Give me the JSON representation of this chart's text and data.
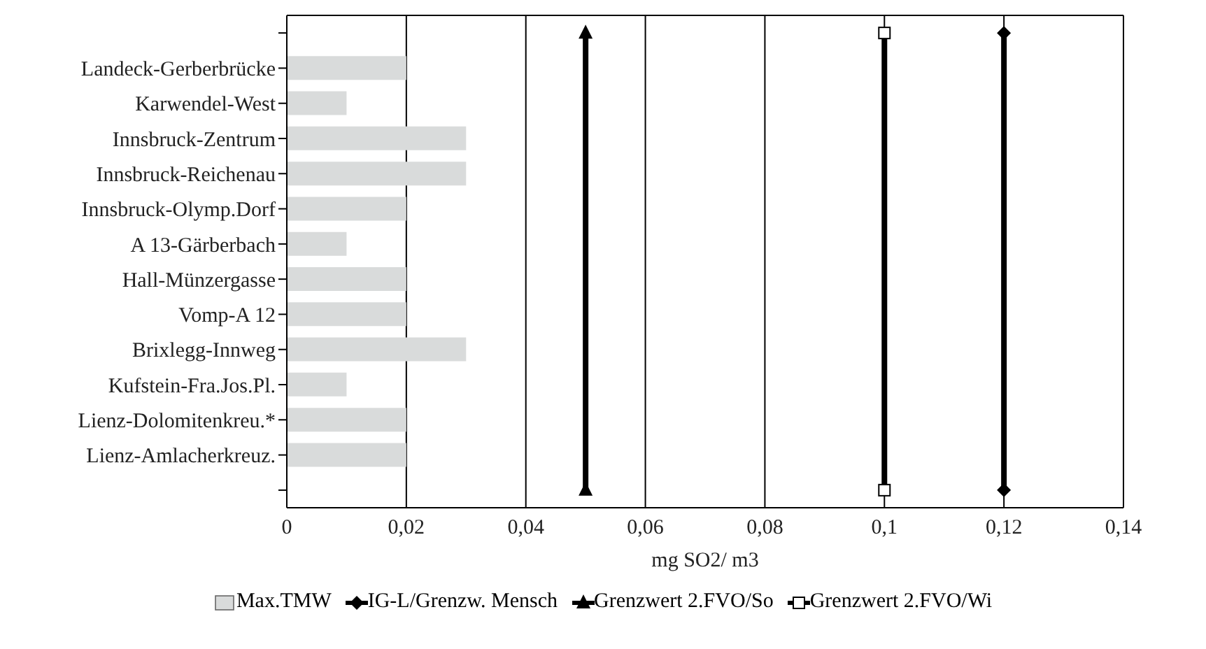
{
  "chart_data": {
    "type": "bar",
    "orientation": "horizontal",
    "xlabel": "mg SO2/ m3",
    "categories": [
      null,
      "Landeck-Gerberbrücke",
      "Karwendel-West",
      "Innsbruck-Zentrum",
      "Innsbruck-Reichenau",
      "Innsbruck-Olymp.Dorf",
      "A 13-Gärberbach",
      "Hall-Münzergasse",
      "Vomp-A 12",
      "Brixlegg-Innweg",
      "Kufstein-Fra.Jos.Pl.",
      "Lienz-Dolomitenkreu.*",
      "Lienz-Amlacherkreuz.",
      null
    ],
    "series": [
      {
        "name": "Max.TMW",
        "color": "#d9dbdb",
        "values": [
          null,
          0.02,
          0.01,
          0.03,
          0.03,
          0.02,
          0.01,
          0.02,
          0.02,
          0.03,
          0.01,
          0.02,
          0.02,
          null
        ]
      },
      {
        "name": "IG-L/Grenzw. Mensch",
        "type": "line",
        "marker": "diamond",
        "color": "#000000",
        "values": [
          0.12,
          null,
          null,
          null,
          null,
          null,
          null,
          null,
          null,
          null,
          null,
          null,
          null,
          0.12
        ]
      },
      {
        "name": "Grenzwert 2.FVO/So",
        "type": "line",
        "marker": "triangle",
        "color": "#000000",
        "values": [
          0.05,
          null,
          null,
          null,
          null,
          null,
          null,
          null,
          null,
          null,
          null,
          null,
          null,
          0.05
        ]
      },
      {
        "name": "Grenzwert 2.FVO/Wi",
        "type": "line",
        "marker": "square",
        "color": "#000000",
        "values": [
          0.1,
          null,
          null,
          null,
          null,
          null,
          null,
          null,
          null,
          null,
          null,
          null,
          null,
          0.1
        ]
      }
    ],
    "xlim": [
      0,
      0.14
    ],
    "xticks": [
      0,
      {
        "value": 0.02,
        "label": "0,02"
      },
      {
        "value": 0.04,
        "label": "0,04"
      },
      {
        "value": 0.06,
        "label": "0,06"
      },
      {
        "value": 0.08,
        "label": "0,08"
      },
      {
        "value": 0.1,
        "label": "0,1"
      },
      {
        "value": 0.12,
        "label": "0,12"
      },
      {
        "value": 0.14,
        "label": "0,14"
      }
    ],
    "grid": "x",
    "legend": "bottom"
  }
}
